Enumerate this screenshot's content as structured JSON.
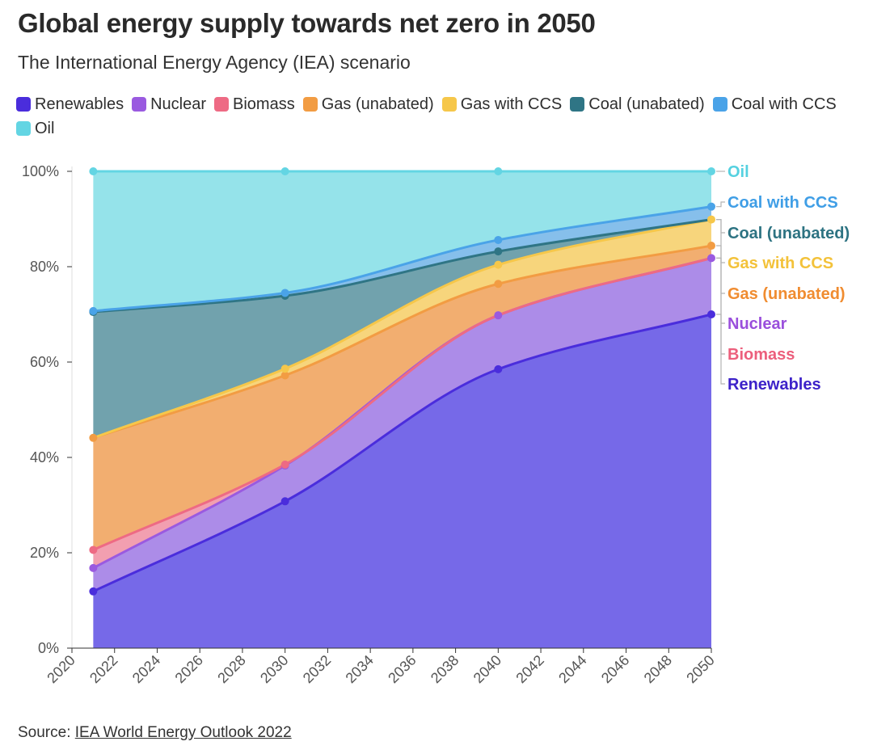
{
  "header": {
    "title": "Global energy supply towards net zero in 2050",
    "subtitle": "The International Energy Agency (IEA) scenario"
  },
  "footer": {
    "source_label": "Source: ",
    "source_link": "IEA World Energy Outlook 2022"
  },
  "chart_data": {
    "type": "area",
    "stacked": true,
    "title": "Global energy supply towards net zero in 2050",
    "subtitle": "The International Energy Agency (IEA) scenario",
    "xlabel": "",
    "ylabel": "",
    "x": [
      2021,
      2030,
      2040,
      2050
    ],
    "xlim": [
      2020,
      2050
    ],
    "ylim": [
      0,
      100
    ],
    "x_ticks": [
      "2020",
      "2022",
      "2024",
      "2026",
      "2028",
      "2030",
      "2032",
      "2034",
      "2036",
      "2038",
      "2040",
      "2042",
      "2044",
      "2046",
      "2048",
      "2050"
    ],
    "y_ticks": [
      "0%",
      "20%",
      "40%",
      "60%",
      "80%",
      "100%"
    ],
    "grid": false,
    "legend_position": "top",
    "series": [
      {
        "name": "Renewables",
        "color": "#4a2ddc",
        "fill": "#7669e8",
        "label_color": "#3d22c9",
        "values": [
          11.9,
          30.8,
          58.5,
          70.0
        ]
      },
      {
        "name": "Nuclear",
        "color": "#9a5ae0",
        "fill": "#ac8ce8",
        "label_color": "#9a4fdc",
        "values": [
          4.9,
          7.5,
          11.3,
          11.8
        ]
      },
      {
        "name": "Biomass",
        "color": "#ee6a84",
        "fill": "#f29fb0",
        "label_color": "#ec5f7c",
        "values": [
          3.8,
          0.2,
          0.0,
          0.0
        ]
      },
      {
        "name": "Gas (unabated)",
        "color": "#f29c43",
        "fill": "#f2ae70",
        "label_color": "#f08c30",
        "values": [
          23.5,
          18.7,
          6.6,
          2.6
        ]
      },
      {
        "name": "Gas with CCS",
        "color": "#f6c74a",
        "fill": "#f7d57c",
        "label_color": "#f3c23a",
        "values": [
          0.0,
          1.4,
          4.0,
          5.5
        ]
      },
      {
        "name": "Coal (unabated)",
        "color": "#2f7585",
        "fill": "#71a2ad",
        "label_color": "#2d7382",
        "values": [
          26.4,
          15.3,
          2.8,
          0.0
        ]
      },
      {
        "name": "Coal with CCS",
        "color": "#4aa3e8",
        "fill": "#86bfeb",
        "label_color": "#3f9ee6",
        "values": [
          0.2,
          0.6,
          2.4,
          2.7
        ]
      },
      {
        "name": "Oil",
        "color": "#63d5e3",
        "fill": "#95e3ea",
        "label_color": "#55d1e0",
        "values": [
          29.3,
          25.5,
          14.4,
          7.4
        ]
      }
    ]
  }
}
